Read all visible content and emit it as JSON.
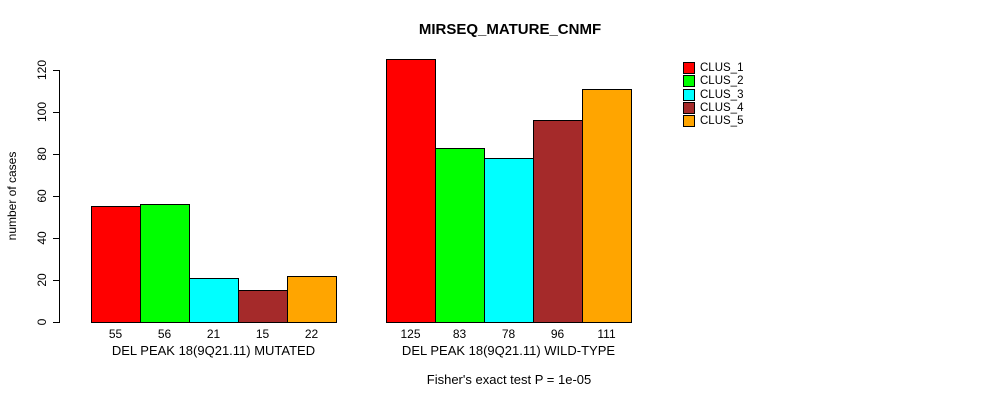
{
  "chart_data": {
    "type": "bar",
    "title": "MIRSEQ_MATURE_CNMF",
    "xlabel": "",
    "ylabel": "number of cases",
    "yticks": [
      0,
      20,
      40,
      60,
      80,
      100,
      120
    ],
    "ylim": [
      0,
      125
    ],
    "grid": false,
    "legend_position": "top-right",
    "bar_border_color": "#000000",
    "categories": [
      "DEL PEAK 18(9Q21.11) MUTATED",
      "DEL PEAK 18(9Q21.11) WILD-TYPE"
    ],
    "series": [
      {
        "name": "CLUS_1",
        "color": "#FF0000",
        "values": [
          55,
          125
        ]
      },
      {
        "name": "CLUS_2",
        "color": "#00FF00",
        "values": [
          56,
          83
        ]
      },
      {
        "name": "CLUS_3",
        "color": "#00FFFF",
        "values": [
          21,
          78
        ]
      },
      {
        "name": "CLUS_4",
        "color": "#A52A2A",
        "values": [
          15,
          96
        ]
      },
      {
        "name": "CLUS_5",
        "color": "#FFA500",
        "values": [
          22,
          111
        ]
      }
    ],
    "annotation": "Fisher's exact test P = 1e-05"
  }
}
